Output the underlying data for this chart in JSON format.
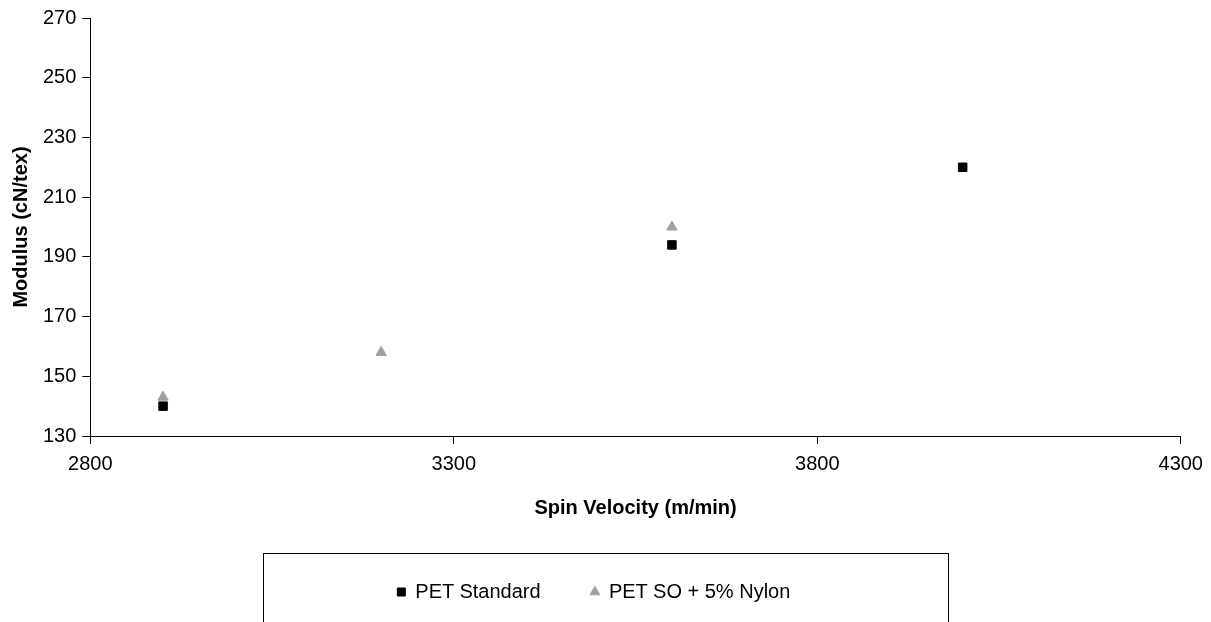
{
  "chart_data": {
    "type": "scatter",
    "xlabel": "Spin Velocity (m/min)",
    "ylabel": "Modulus (cN/tex)",
    "xlim": [
      2800,
      4300
    ],
    "xticks": [
      2800,
      3300,
      3800,
      4300
    ],
    "ylim": [
      130,
      270
    ],
    "yticks": [
      130,
      150,
      170,
      190,
      210,
      230,
      250,
      270
    ],
    "grid": false,
    "legend": "bottom",
    "series": [
      {
        "name": "PET Standard",
        "color": "#000000",
        "marker": "square",
        "x": [
          2900,
          3600,
          4000
        ],
        "values": [
          140,
          194,
          220
        ]
      },
      {
        "name": "PET SO + 5% Nylon",
        "color": "#a0a0a0",
        "marker": "triangle",
        "x": [
          2900,
          3200,
          3600
        ],
        "values": [
          143,
          158,
          200
        ]
      }
    ]
  }
}
